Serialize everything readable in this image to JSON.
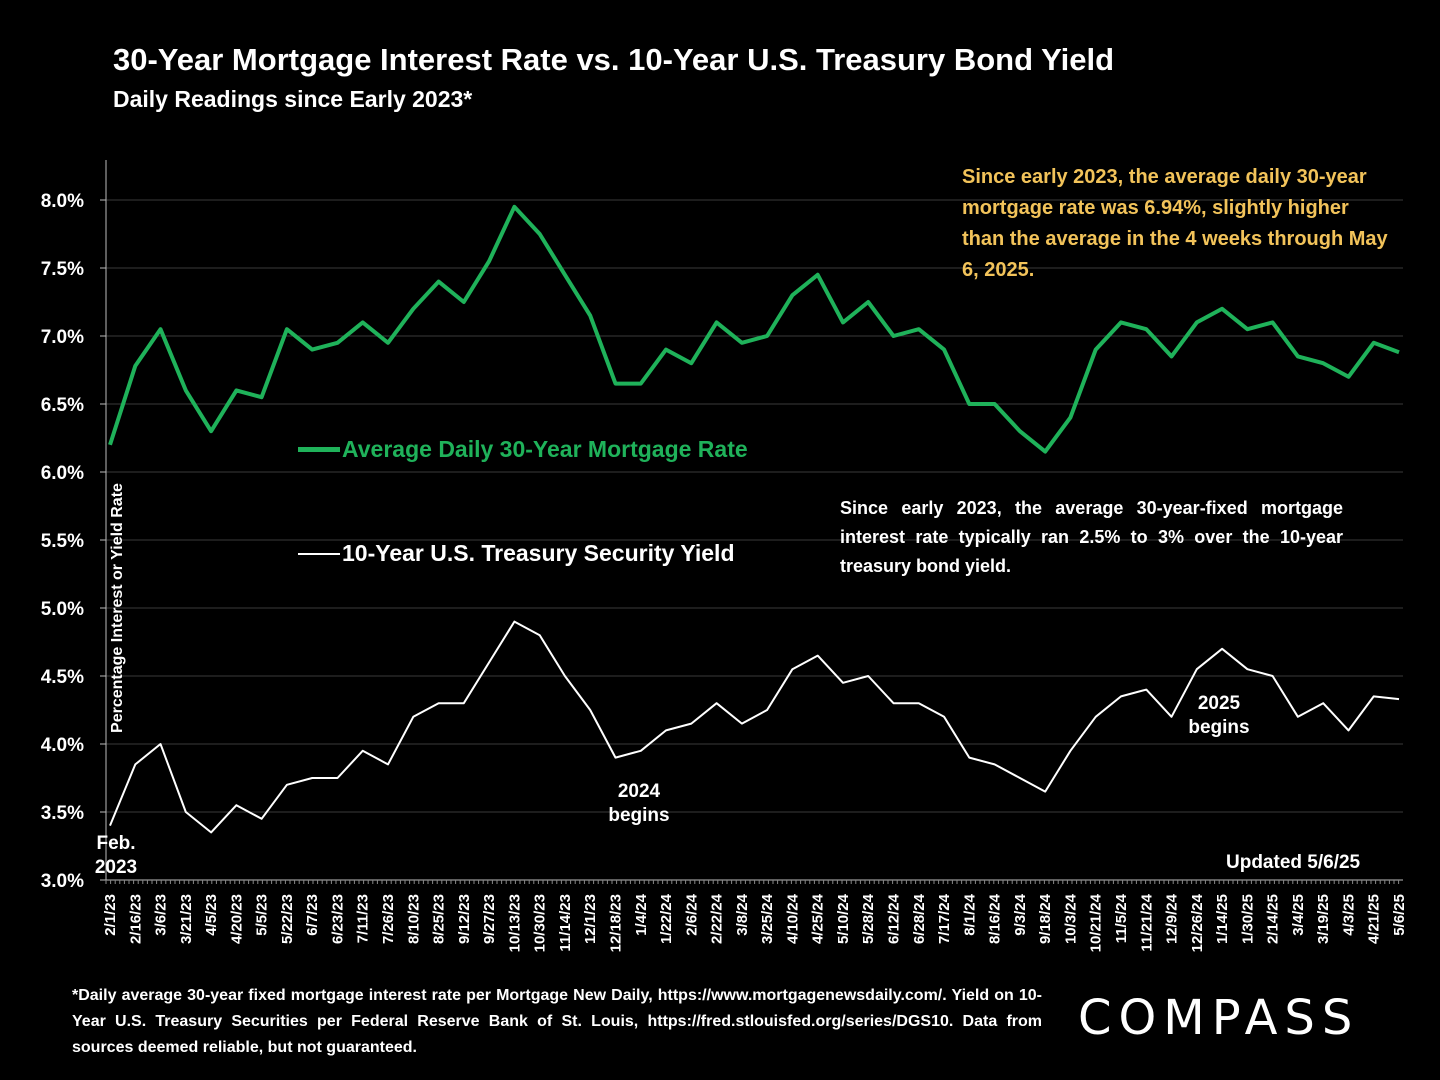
{
  "header": {
    "title": "30-Year Mortgage Interest Rate vs. 10-Year U.S. Treasury Bond Yield",
    "subtitle": "Daily Readings since Early 2023*"
  },
  "annotations": {
    "avg_note": "Since early 2023, the average daily 30-year mortgage rate was 6.94%, slightly higher than the average in the 4 weeks through May 6, 2025.",
    "spread_note": "Since early 2023, the average 30-year-fixed mortgage interest rate typically ran 2.5% to 3% over the 10-year treasury bond yield.",
    "start_label": "Feb. 2023",
    "label_2024": "2024 begins",
    "label_2025": "2025 begins",
    "updated": "Updated 5/6/25"
  },
  "footer": {
    "footnote": "*Daily average 30-year fixed mortgage interest rate per Mortgage New Daily, https://www.mortgagenewsdaily.com/. Yield on 10-Year U.S. Treasury Securities per Federal Reserve Bank of St. Louis, https://fred.stlouisfed.org/series/DGS10. Data from sources deemed reliable, but not guaranteed.",
    "logo": "COMPASS"
  },
  "colors": {
    "mortgage": "#1fb25a",
    "treasury": "#ffffff",
    "annotation": "#f2c35a",
    "background": "#000000"
  },
  "chart_data": {
    "type": "line",
    "title": "30-Year Mortgage Interest Rate vs. 10-Year U.S. Treasury Bond Yield",
    "subtitle": "Daily Readings since Early 2023*",
    "ylabel": "Percentage Interest or Yield Rate",
    "xlabel": "",
    "ylim": [
      3.0,
      8.0
    ],
    "y_ticks": [
      "3.0%",
      "3.5%",
      "4.0%",
      "4.5%",
      "5.0%",
      "5.5%",
      "6.0%",
      "6.5%",
      "7.0%",
      "7.5%",
      "8.0%"
    ],
    "x_ticks": [
      "2/1/23",
      "2/16/23",
      "3/6/23",
      "3/21/23",
      "4/5/23",
      "4/20/23",
      "5/5/23",
      "5/22/23",
      "6/7/23",
      "6/23/23",
      "7/11/23",
      "7/26/23",
      "8/10/23",
      "8/25/23",
      "9/12/23",
      "9/27/23",
      "10/13/23",
      "10/30/23",
      "11/14/23",
      "12/1/23",
      "12/18/23",
      "1/4/24",
      "1/22/24",
      "2/6/24",
      "2/22/24",
      "3/8/24",
      "3/25/24",
      "4/10/24",
      "4/25/24",
      "5/10/24",
      "5/28/24",
      "6/12/24",
      "6/28/24",
      "7/17/24",
      "8/1/24",
      "8/16/24",
      "9/3/24",
      "9/18/24",
      "10/3/24",
      "10/21/24",
      "11/5/24",
      "11/21/24",
      "12/9/24",
      "12/26/24",
      "1/14/25",
      "1/30/25",
      "2/14/25",
      "3/4/25",
      "3/19/25",
      "4/3/25",
      "4/21/25",
      "5/6/25"
    ],
    "grid": "horizontal",
    "legend": "center-left",
    "series": [
      {
        "name": "Average Daily 30-Year Mortgage Rate",
        "color": "#1fb25a",
        "x": [
          "2/1/23",
          "2/16/23",
          "3/6/23",
          "3/21/23",
          "4/5/23",
          "4/20/23",
          "5/5/23",
          "5/22/23",
          "6/7/23",
          "6/23/23",
          "7/11/23",
          "7/26/23",
          "8/10/23",
          "8/25/23",
          "9/12/23",
          "9/27/23",
          "10/13/23",
          "10/30/23",
          "11/14/23",
          "12/1/23",
          "12/18/23",
          "1/4/24",
          "1/22/24",
          "2/6/24",
          "2/22/24",
          "3/8/24",
          "3/25/24",
          "4/10/24",
          "4/25/24",
          "5/10/24",
          "5/28/24",
          "6/12/24",
          "6/28/24",
          "7/17/24",
          "8/1/24",
          "8/16/24",
          "9/3/24",
          "9/18/24",
          "10/3/24",
          "10/21/24",
          "11/5/24",
          "11/21/24",
          "12/9/24",
          "12/26/24",
          "1/14/25",
          "1/30/25",
          "2/14/25",
          "3/4/25",
          "3/19/25",
          "4/3/25",
          "4/21/25",
          "5/6/25"
        ],
        "values": [
          6.2,
          6.78,
          7.05,
          6.6,
          6.3,
          6.6,
          6.55,
          7.05,
          6.9,
          6.95,
          7.1,
          6.95,
          7.2,
          7.4,
          7.25,
          7.55,
          7.95,
          7.75,
          7.45,
          7.15,
          6.65,
          6.65,
          6.9,
          6.8,
          7.1,
          6.95,
          7.0,
          7.3,
          7.45,
          7.1,
          7.25,
          7.0,
          7.05,
          6.9,
          6.5,
          6.5,
          6.3,
          6.15,
          6.4,
          6.9,
          7.1,
          7.05,
          6.85,
          7.1,
          7.2,
          7.05,
          7.1,
          6.85,
          6.8,
          6.7,
          6.95,
          6.88
        ]
      },
      {
        "name": "10-Year U.S. Treasury Security Yield",
        "color": "#ffffff",
        "x": [
          "2/1/23",
          "2/16/23",
          "3/6/23",
          "3/21/23",
          "4/5/23",
          "4/20/23",
          "5/5/23",
          "5/22/23",
          "6/7/23",
          "6/23/23",
          "7/11/23",
          "7/26/23",
          "8/10/23",
          "8/25/23",
          "9/12/23",
          "9/27/23",
          "10/13/23",
          "10/30/23",
          "11/14/23",
          "12/1/23",
          "12/18/23",
          "1/4/24",
          "1/22/24",
          "2/6/24",
          "2/22/24",
          "3/8/24",
          "3/25/24",
          "4/10/24",
          "4/25/24",
          "5/10/24",
          "5/28/24",
          "6/12/24",
          "6/28/24",
          "7/17/24",
          "8/1/24",
          "8/16/24",
          "9/3/24",
          "9/18/24",
          "10/3/24",
          "10/21/24",
          "11/5/24",
          "11/21/24",
          "12/9/24",
          "12/26/24",
          "1/14/25",
          "1/30/25",
          "2/14/25",
          "3/4/25",
          "3/19/25",
          "4/3/25",
          "4/21/25",
          "5/6/25"
        ],
        "values": [
          3.4,
          3.85,
          4.0,
          3.5,
          3.35,
          3.55,
          3.45,
          3.7,
          3.75,
          3.75,
          3.95,
          3.85,
          4.2,
          4.3,
          4.3,
          4.6,
          4.9,
          4.8,
          4.5,
          4.25,
          3.9,
          3.95,
          4.1,
          4.15,
          4.3,
          4.15,
          4.25,
          4.55,
          4.65,
          4.45,
          4.5,
          4.3,
          4.3,
          4.2,
          3.9,
          3.85,
          3.75,
          3.65,
          3.95,
          4.2,
          4.35,
          4.4,
          4.2,
          4.55,
          4.7,
          4.55,
          4.5,
          4.2,
          4.3,
          4.1,
          4.35,
          4.33
        ]
      }
    ]
  }
}
